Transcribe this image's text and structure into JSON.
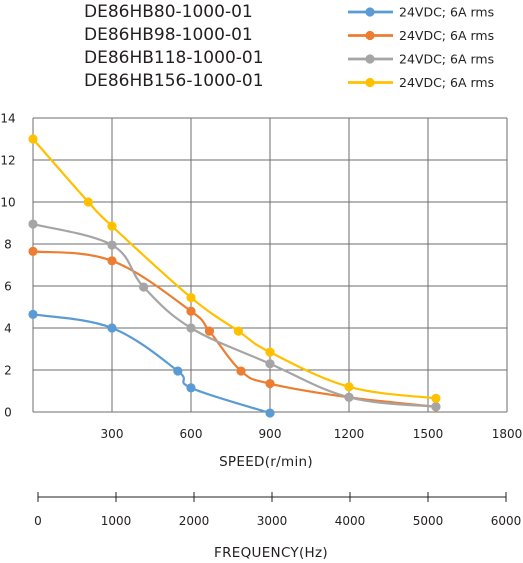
{
  "chart_data": {
    "type": "line",
    "models": [
      "DE86HB80-1000-01",
      "DE86HB98-1000-01",
      "DE86HB118-1000-01",
      "DE86HB156-1000-01"
    ],
    "series": [
      {
        "name": "24VDC; 6A rms",
        "color": "#5b9bd5",
        "x": [
          0,
          300,
          550,
          600,
          900
        ],
        "y": [
          4.65,
          4.0,
          1.95,
          1.15,
          -0.05
        ]
      },
      {
        "name": "24VDC; 6A rms",
        "color": "#ed7d31",
        "x": [
          0,
          300,
          600,
          670,
          790,
          900,
          1200,
          1530
        ],
        "y": [
          7.65,
          7.2,
          4.8,
          3.85,
          1.95,
          1.35,
          0.7,
          0.25
        ]
      },
      {
        "name": "24VDC; 6A rms",
        "color": "#a5a5a5",
        "x": [
          0,
          300,
          420,
          600,
          900,
          1200,
          1530
        ],
        "y": [
          8.95,
          7.95,
          5.95,
          4.0,
          2.3,
          0.7,
          0.25
        ]
      },
      {
        "name": "24VDC; 6A rms",
        "color": "#ffc000",
        "x": [
          0,
          210,
          300,
          600,
          780,
          900,
          1200,
          1530
        ],
        "y": [
          13.0,
          10.0,
          8.85,
          5.45,
          3.85,
          2.85,
          1.2,
          0.65
        ]
      }
    ],
    "y_axis": {
      "range": [
        0,
        14
      ],
      "ticks": [
        "0",
        "2",
        "4",
        "6",
        "8",
        "10",
        "12",
        "14"
      ]
    },
    "x_axis": {
      "label": "SPEED(r/min)",
      "range": [
        0,
        1800
      ],
      "ticks": [
        "300",
        "600",
        "900",
        "1200",
        "1500",
        "1800"
      ]
    },
    "x2_axis": {
      "label": "FREQUENCY(Hz)",
      "range": [
        0,
        6000
      ],
      "ticks": [
        "0",
        "1000",
        "2000",
        "3000",
        "4000",
        "5000",
        "6000"
      ]
    },
    "grid": true,
    "legend_position": "top-right"
  }
}
